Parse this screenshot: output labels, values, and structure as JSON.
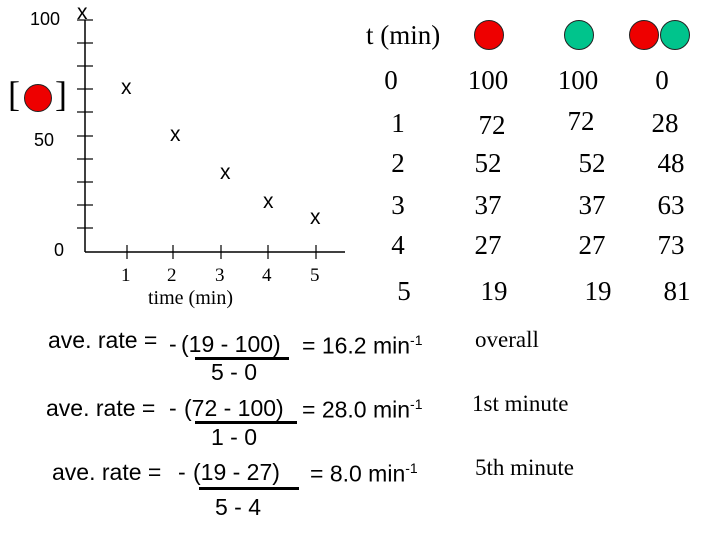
{
  "colors": {
    "red": "#ee0000",
    "teal": "#00c48c"
  },
  "graph": {
    "y_bracket_left": "[",
    "y_bracket_right": "]",
    "y_ticks": [
      "100",
      "50",
      "0"
    ],
    "x_ticks": [
      "1",
      "2",
      "3",
      "4",
      "5"
    ],
    "xlabel": "time (min)",
    "marker": "x"
  },
  "chart_data": {
    "type": "scatter",
    "title": "",
    "xlabel": "time (min)",
    "ylabel": "[A]",
    "x": [
      0,
      1,
      2,
      3,
      4,
      5
    ],
    "y": [
      100,
      72,
      52,
      37,
      27,
      19
    ],
    "xlim": [
      0,
      5
    ],
    "ylim": [
      0,
      100
    ]
  },
  "table": {
    "headers": [
      "t (min)"
    ],
    "rows": [
      [
        "0",
        "100",
        "100",
        "0"
      ],
      [
        "1",
        "72",
        "72",
        "28"
      ],
      [
        "2",
        "52",
        "52",
        "48"
      ],
      [
        "3",
        "37",
        "37",
        "63"
      ],
      [
        "4",
        "27",
        "27",
        "73"
      ],
      [
        "5",
        "19",
        "19",
        "81"
      ]
    ]
  },
  "rates": [
    {
      "lead": "ave. rate = ",
      "minus": "-",
      "num": "(19 - 100)",
      "result": "= 16.2 min",
      "sup": "-1",
      "den": "5 - 0",
      "label": "overall"
    },
    {
      "lead": "ave. rate = ",
      "minus": "-",
      "num": "(72 - 100)",
      "result": "= 28.0 min",
      "sup": "-1",
      "den": "1 - 0",
      "label": "1st minute"
    },
    {
      "lead": "ave. rate = ",
      "minus": "-",
      "num": "(19 - 27)",
      "result": "= 8.0 min",
      "sup": "-1",
      "den": "5 - 4",
      "label": "5th minute"
    }
  ]
}
